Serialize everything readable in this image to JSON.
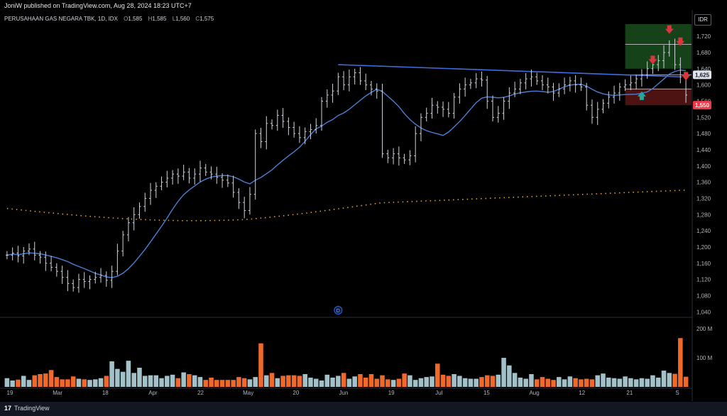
{
  "header": {
    "published": "JoniW published on TradingView.com, Aug 28, 2024 18:23 UTC+7",
    "symbol": "PERUSAHAAN GAS NEGARA TBK, 1D, IDX",
    "o_label": "O",
    "o_value": "1,585",
    "h_label": "H",
    "h_value": "1,585",
    "l_label": "L",
    "l_value": "1,560",
    "c_label": "C",
    "c_value": "1,575"
  },
  "currency": "IDR",
  "footer": {
    "brand": "TradingView"
  },
  "colors": {
    "background": "#000000",
    "bar": "#d1d4dc",
    "ma_short": "#4a7fd4",
    "ma_long": "#e0a030",
    "trendline": "#3d6be0",
    "vol_up": "#a3c1c8",
    "vol_down": "#f0682a",
    "zone_green": "#1a4d1f",
    "zone_red": "#5a1616",
    "arrow_down": "#d9363e",
    "arrow_up": "#26a69a",
    "price_badge": "#e0e3eb",
    "last_badge": "#f23645"
  },
  "chart_data": {
    "type": "candlestick-ohlc",
    "y_range": [
      1030,
      1750
    ],
    "y_ticks": [
      1040,
      1080,
      1120,
      1160,
      1200,
      1240,
      1280,
      1320,
      1360,
      1400,
      1440,
      1480,
      1520,
      1560,
      1600,
      1640,
      1680,
      1720
    ],
    "y_tick_labels": [
      "1,040",
      "1,080",
      "1,120",
      "1,160",
      "1,200",
      "1,240",
      "1,280",
      "1,320",
      "1,360",
      "1,400",
      "1,440",
      "1,480",
      "1,520",
      "1,560",
      "1,600",
      "1,640",
      "1,680",
      "1,720"
    ],
    "price_labels": [
      {
        "value": 1625,
        "text": "1,625"
      },
      {
        "value": 1550,
        "text": "1,550"
      }
    ],
    "x_labels": [
      "19",
      "Mar",
      "18",
      "Apr",
      "22",
      "May",
      "20",
      "Jun",
      "19",
      "Jul",
      "15",
      "Aug",
      "12",
      "21",
      "S"
    ],
    "close": [
      1180,
      1185,
      1178,
      1190,
      1195,
      1180,
      1175,
      1160,
      1150,
      1140,
      1125,
      1110,
      1100,
      1120,
      1115,
      1120,
      1125,
      1130,
      1118,
      1140,
      1190,
      1230,
      1260,
      1280,
      1300,
      1320,
      1340,
      1350,
      1360,
      1370,
      1380,
      1375,
      1385,
      1370,
      1380,
      1395,
      1385,
      1380,
      1372,
      1365,
      1358,
      1335,
      1310,
      1290,
      1330,
      1480,
      1460,
      1505,
      1500,
      1525,
      1510,
      1495,
      1480,
      1470,
      1485,
      1490,
      1500,
      1560,
      1575,
      1585,
      1620,
      1600,
      1620,
      1630,
      1610,
      1600,
      1590,
      1585,
      1430,
      1420,
      1430,
      1420,
      1415,
      1425,
      1480,
      1520,
      1530,
      1550,
      1545,
      1540,
      1530,
      1570,
      1590,
      1600,
      1605,
      1615,
      1612,
      1560,
      1520,
      1530,
      1560,
      1580,
      1590,
      1605,
      1615,
      1620,
      1610,
      1600,
      1595,
      1580,
      1590,
      1600,
      1610,
      1600,
      1595,
      1550,
      1520,
      1540,
      1555,
      1570,
      1580,
      1595,
      1600,
      1605,
      1615,
      1625,
      1640,
      1650,
      1660,
      1680,
      1700,
      1650,
      1620,
      1575
    ],
    "volume": [
      30,
      22,
      25,
      38,
      24,
      40,
      44,
      46,
      58,
      34,
      26,
      26,
      36,
      28,
      26,
      24,
      26,
      30,
      38,
      88,
      62,
      52,
      90,
      48,
      66,
      38,
      40,
      40,
      30,
      38,
      42,
      30,
      50,
      44,
      40,
      34,
      24,
      32,
      24,
      24,
      24,
      24,
      34,
      30,
      26,
      34,
      150,
      40,
      48,
      30,
      38,
      40,
      40,
      38,
      44,
      32,
      28,
      22,
      42,
      32,
      38,
      48,
      28,
      36,
      44,
      32,
      44,
      28,
      40,
      26,
      24,
      28,
      46,
      40,
      24,
      30,
      34,
      36,
      80,
      42,
      38,
      44,
      38,
      30,
      28,
      28,
      34,
      40,
      38,
      42,
      100,
      74,
      48,
      32,
      28,
      44,
      26,
      34,
      28,
      24,
      34,
      26,
      36,
      30,
      26,
      28,
      26,
      40,
      46,
      32,
      30,
      28,
      36,
      30,
      26,
      30,
      28,
      40,
      32,
      56,
      48,
      45,
      168,
      35
    ],
    "volume_up": [
      true,
      true,
      false,
      true,
      true,
      false,
      false,
      false,
      false,
      false,
      false,
      false,
      false,
      true,
      false,
      true,
      true,
      true,
      false,
      true,
      true,
      true,
      true,
      true,
      true,
      true,
      true,
      true,
      true,
      true,
      true,
      false,
      true,
      false,
      true,
      true,
      false,
      false,
      false,
      false,
      false,
      false,
      false,
      false,
      true,
      true,
      false,
      true,
      false,
      true,
      false,
      false,
      false,
      false,
      true,
      true,
      true,
      true,
      true,
      true,
      true,
      false,
      true,
      true,
      false,
      false,
      false,
      false,
      false,
      false,
      true,
      false,
      false,
      true,
      true,
      true,
      true,
      true,
      false,
      false,
      false,
      true,
      true,
      true,
      true,
      true,
      false,
      false,
      false,
      true,
      true,
      true,
      true,
      true,
      true,
      true,
      false,
      false,
      false,
      false,
      true,
      true,
      true,
      false,
      false,
      false,
      false,
      true,
      true,
      true,
      true,
      true,
      true,
      true,
      true,
      true,
      true,
      true,
      true,
      true,
      true,
      false,
      false,
      false
    ],
    "volume_ticks": [
      {
        "value": 100,
        "text": "100 M"
      },
      {
        "value": 200,
        "text": "200 M"
      }
    ],
    "volume_max": 220,
    "trendline": {
      "from": {
        "i": 60,
        "v": 1650
      },
      "to": {
        "i": 122,
        "v": 1620
      }
    },
    "zones": [
      {
        "kind": "target",
        "i0": 112,
        "i1": 124,
        "v0": 1640,
        "v1": 1750
      },
      {
        "kind": "stop",
        "i0": 112,
        "i1": 124,
        "v0": 1550,
        "v1": 1590
      }
    ],
    "zone_lines": [
      1700,
      1625,
      1590
    ],
    "arrows": [
      {
        "i": 117,
        "v": 1660,
        "dir": "down"
      },
      {
        "i": 120,
        "v": 1735,
        "dir": "down"
      },
      {
        "i": 122,
        "v": 1705,
        "dir": "down"
      },
      {
        "i": 123,
        "v": 1620,
        "dir": "down"
      },
      {
        "i": 115,
        "v": 1575,
        "dir": "up"
      }
    ],
    "event_marker": "D"
  }
}
